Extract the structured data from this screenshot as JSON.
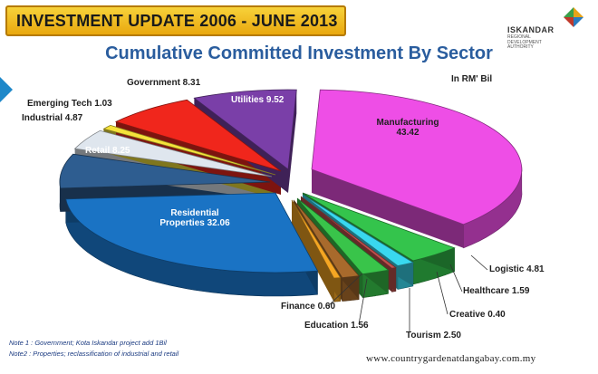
{
  "banner": {
    "text": "INVESTMENT UPDATE 2006 - JUNE 2013"
  },
  "logo": {
    "name": "ISKANDAR",
    "subtitle": "REGIONAL\nDEVELOPMENT\nAUTHORITY",
    "colors": [
      "#e8a317",
      "#2a7bc0",
      "#c0392b",
      "#3aa04a"
    ]
  },
  "chart_data": {
    "type": "pie",
    "title": "Cumulative Committed Investment By Sector",
    "unit": "In RM' Bil",
    "series": [
      {
        "values": [
          {
            "label": "Manufacturing",
            "value": 43.42,
            "label_text": "Manufacturing\n43.42",
            "color": "#ee4ee6"
          },
          {
            "label": "Logistic",
            "value": 4.81,
            "label_text": "Logistic 4.81",
            "color": "#34c44c"
          },
          {
            "label": "Healthcare",
            "value": 1.59,
            "label_text": "Healthcare 1.59",
            "color": "#39d8ef"
          },
          {
            "label": "Creative",
            "value": 0.4,
            "label_text": "Creative 0.40",
            "color": "#c0504d"
          },
          {
            "label": "Tourism",
            "value": 2.5,
            "label_text": "Tourism 2.50",
            "color": "#39c44a"
          },
          {
            "label": "Education",
            "value": 1.56,
            "label_text": "Education 1.56",
            "color": "#a86a2c"
          },
          {
            "label": "Finance",
            "value": 0.6,
            "label_text": "Finance 0.60",
            "color": "#f5a623"
          },
          {
            "label": "Residential Properties",
            "value": 32.06,
            "label_text": "Residential\nProperties 32.06",
            "color": "#1a73c4"
          },
          {
            "label": "Retail",
            "value": 8.25,
            "label_text": "Retail 8.25",
            "color": "#2e5d90"
          },
          {
            "label": "Industrial",
            "value": 4.87,
            "label_text": "Industrial 4.87",
            "color": "#dfe6ee"
          },
          {
            "label": "Emerging Tech",
            "value": 1.03,
            "label_text": "Emerging Tech 1.03",
            "color": "#f5e23a"
          },
          {
            "label": "Government",
            "value": 8.31,
            "label_text": "Government  8.31",
            "color": "#f0261c"
          },
          {
            "label": "Utilities",
            "value": 9.52,
            "label_text": "Utilities 9.52",
            "color": "#7a3fa8"
          }
        ]
      }
    ]
  },
  "notes": [
    "Note 1 :  Government; Kota Iskandar project add 1Bil",
    "Note2 :  Properties; reclassification of industrial and retail"
  ],
  "website": "www.countrygardenatdangabay.com.my"
}
